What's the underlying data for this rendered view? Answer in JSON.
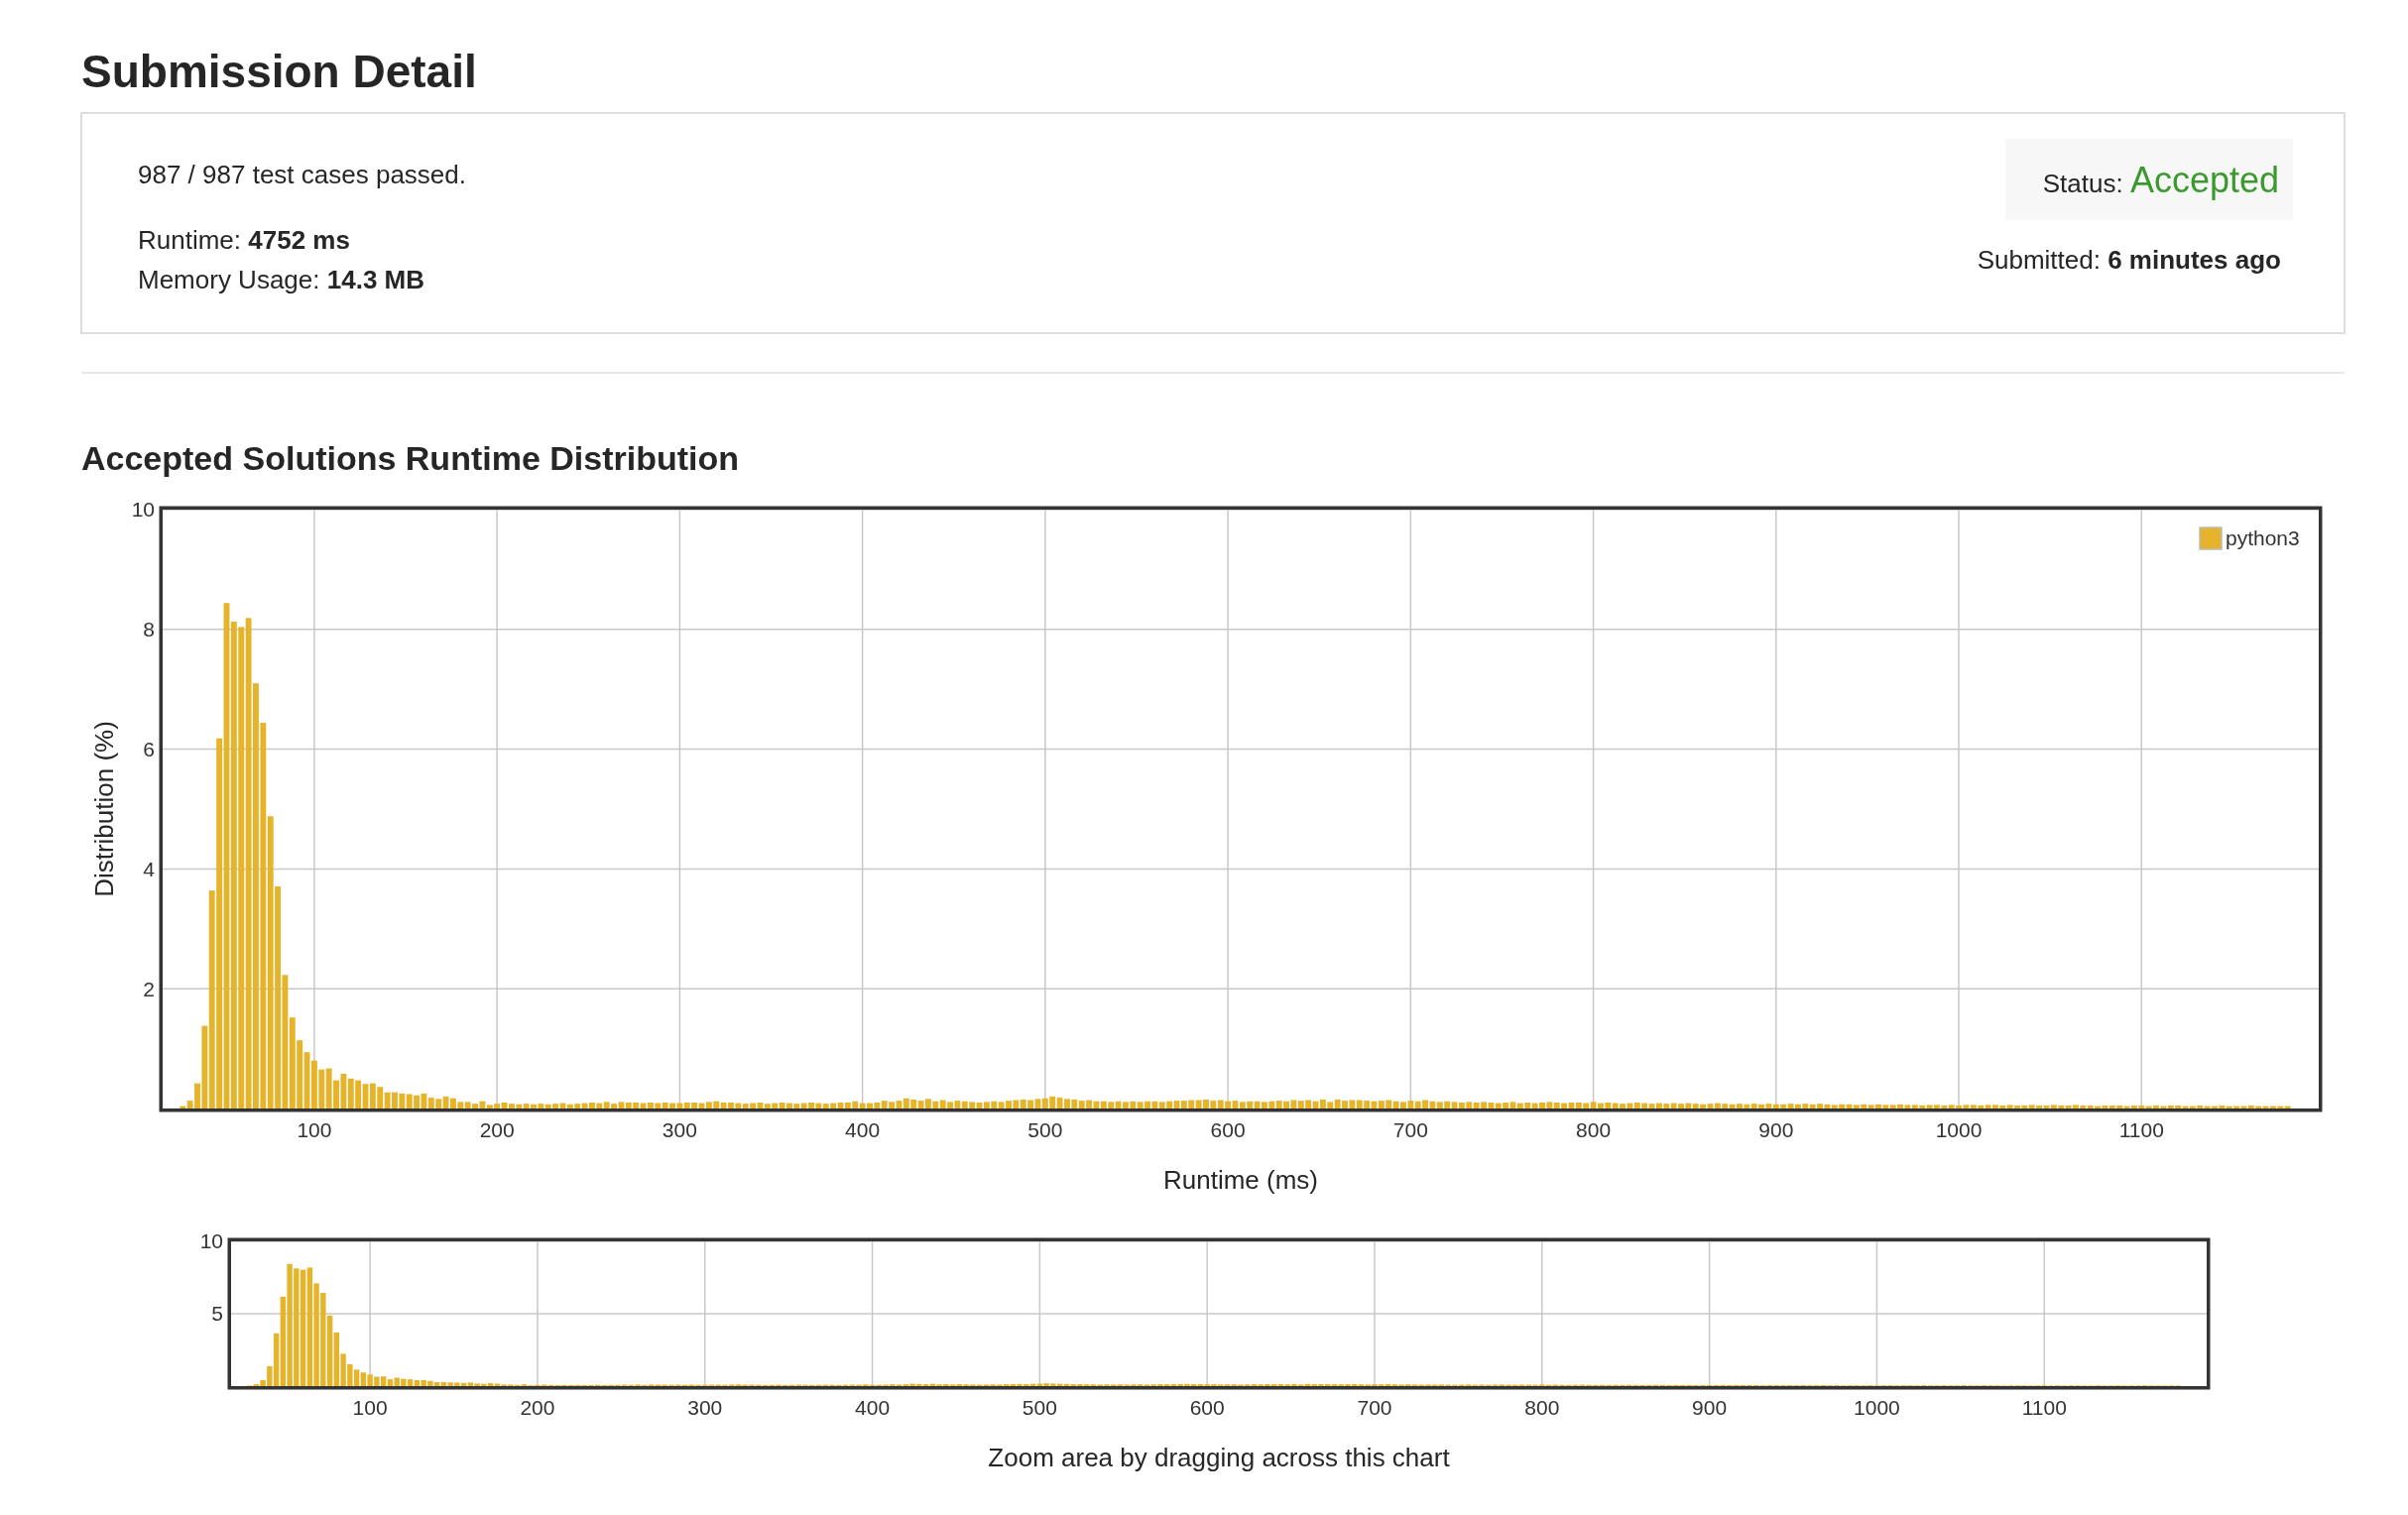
{
  "chart_data": [
    {
      "type": "other",
      "title": "Submission Detail",
      "annotations": [
        "987 / 987 test cases passed.",
        "Runtime: 4752 ms",
        "Memory Usage: 14.3 MB",
        "Status: Accepted",
        "Submitted: 6 minutes ago"
      ]
    },
    {
      "type": "bar",
      "title": "Accepted Solutions Runtime Distribution",
      "xlabel": "Runtime (ms)",
      "ylabel": "Distribution (%)",
      "xlim": [
        17,
        1197
      ],
      "ylim": [
        0,
        10
      ],
      "xticks": [
        100,
        200,
        300,
        400,
        500,
        600,
        700,
        800,
        900,
        1000,
        1100
      ],
      "yticks": [
        2,
        4,
        6,
        8,
        10
      ],
      "grid": true,
      "legend": "top right",
      "x": [
        28,
        32,
        36,
        40,
        44,
        48,
        52,
        56,
        60,
        64,
        68,
        72,
        76,
        80,
        84,
        88,
        92,
        96,
        100,
        104,
        108,
        112,
        116,
        120,
        124,
        128,
        132,
        136,
        140,
        144,
        148,
        152,
        156,
        160,
        164,
        168,
        172,
        176,
        180,
        184,
        188,
        192,
        196,
        200,
        204,
        208,
        212,
        216,
        220,
        224,
        228,
        232,
        236,
        240,
        244,
        248,
        252,
        256,
        260,
        264,
        268,
        272,
        276,
        280,
        284,
        288,
        292,
        296,
        300,
        304,
        308,
        312,
        316,
        320,
        324,
        328,
        332,
        336,
        340,
        344,
        348,
        352,
        356,
        360,
        364,
        368,
        372,
        376,
        380,
        384,
        388,
        392,
        396,
        400,
        404,
        408,
        412,
        416,
        420,
        424,
        428,
        432,
        436,
        440,
        444,
        448,
        452,
        456,
        460,
        464,
        468,
        472,
        476,
        480,
        484,
        488,
        492,
        496,
        500,
        504,
        508,
        512,
        516,
        520,
        524,
        528,
        532,
        536,
        540,
        544,
        548,
        552,
        556,
        560,
        564,
        568,
        572,
        576,
        580,
        584,
        588,
        592,
        596,
        600,
        604,
        608,
        612,
        616,
        620,
        624,
        628,
        632,
        636,
        640,
        644,
        648,
        652,
        656,
        660,
        664,
        668,
        672,
        676,
        680,
        684,
        688,
        692,
        696,
        700,
        704,
        708,
        712,
        716,
        720,
        724,
        728,
        732,
        736,
        740,
        744,
        748,
        752,
        756,
        760,
        764,
        768,
        772,
        776,
        780,
        784,
        788,
        792,
        796,
        800,
        804,
        808,
        812,
        816,
        820,
        824,
        828,
        832,
        836,
        840,
        844,
        848,
        852,
        856,
        860,
        864,
        868,
        872,
        876,
        880,
        884,
        888,
        892,
        896,
        900,
        904,
        908,
        912,
        916,
        920,
        924,
        928,
        932,
        936,
        940,
        944,
        948,
        952,
        956,
        960,
        964,
        968,
        972,
        976,
        980,
        984,
        988,
        992,
        996,
        1000,
        1004,
        1008,
        1012,
        1016,
        1020,
        1024,
        1028,
        1032,
        1036,
        1040,
        1044,
        1048,
        1052,
        1056,
        1060,
        1064,
        1068,
        1072,
        1076,
        1080,
        1084,
        1088,
        1092,
        1096,
        1100,
        1104,
        1108,
        1112,
        1116,
        1120,
        1124,
        1128,
        1132,
        1136,
        1140,
        1144,
        1148,
        1152,
        1156,
        1160,
        1164,
        1168,
        1172,
        1176,
        1180
      ],
      "series": [
        {
          "name": "python3",
          "color": "#e6b42a",
          "values": [
            0.04,
            0.13,
            0.42,
            1.38,
            3.64,
            6.18,
            8.44,
            8.13,
            8.04,
            8.19,
            7.1,
            6.44,
            4.88,
            3.71,
            2.23,
            1.52,
            1.14,
            0.94,
            0.8,
            0.65,
            0.67,
            0.47,
            0.58,
            0.5,
            0.47,
            0.41,
            0.42,
            0.36,
            0.27,
            0.27,
            0.25,
            0.24,
            0.22,
            0.25,
            0.18,
            0.16,
            0.2,
            0.17,
            0.11,
            0.11,
            0.08,
            0.12,
            0.06,
            0.08,
            0.1,
            0.08,
            0.07,
            0.08,
            0.07,
            0.08,
            0.07,
            0.08,
            0.09,
            0.07,
            0.08,
            0.09,
            0.1,
            0.09,
            0.11,
            0.08,
            0.11,
            0.1,
            0.1,
            0.09,
            0.1,
            0.09,
            0.1,
            0.09,
            0.09,
            0.1,
            0.1,
            0.09,
            0.11,
            0.12,
            0.1,
            0.1,
            0.09,
            0.08,
            0.09,
            0.1,
            0.08,
            0.09,
            0.1,
            0.09,
            0.08,
            0.09,
            0.1,
            0.09,
            0.08,
            0.09,
            0.1,
            0.1,
            0.12,
            0.09,
            0.09,
            0.1,
            0.13,
            0.11,
            0.13,
            0.17,
            0.15,
            0.13,
            0.16,
            0.12,
            0.14,
            0.11,
            0.13,
            0.12,
            0.11,
            0.1,
            0.11,
            0.12,
            0.11,
            0.13,
            0.14,
            0.15,
            0.14,
            0.16,
            0.17,
            0.2,
            0.18,
            0.16,
            0.15,
            0.13,
            0.14,
            0.12,
            0.12,
            0.11,
            0.12,
            0.11,
            0.12,
            0.11,
            0.12,
            0.12,
            0.11,
            0.12,
            0.13,
            0.13,
            0.14,
            0.14,
            0.15,
            0.13,
            0.14,
            0.12,
            0.13,
            0.11,
            0.12,
            0.12,
            0.11,
            0.12,
            0.13,
            0.12,
            0.14,
            0.13,
            0.14,
            0.12,
            0.15,
            0.11,
            0.15,
            0.13,
            0.14,
            0.14,
            0.13,
            0.12,
            0.13,
            0.14,
            0.12,
            0.11,
            0.13,
            0.12,
            0.14,
            0.12,
            0.11,
            0.12,
            0.11,
            0.1,
            0.11,
            0.1,
            0.11,
            0.1,
            0.09,
            0.1,
            0.11,
            0.09,
            0.1,
            0.09,
            0.1,
            0.11,
            0.1,
            0.09,
            0.1,
            0.1,
            0.09,
            0.11,
            0.09,
            0.1,
            0.09,
            0.08,
            0.09,
            0.1,
            0.09,
            0.08,
            0.09,
            0.08,
            0.09,
            0.08,
            0.09,
            0.08,
            0.07,
            0.08,
            0.09,
            0.08,
            0.07,
            0.08,
            0.07,
            0.08,
            0.07,
            0.08,
            0.07,
            0.07,
            0.08,
            0.07,
            0.08,
            0.07,
            0.08,
            0.07,
            0.06,
            0.07,
            0.07,
            0.06,
            0.07,
            0.06,
            0.07,
            0.06,
            0.06,
            0.07,
            0.06,
            0.06,
            0.05,
            0.06,
            0.06,
            0.05,
            0.06,
            0.05,
            0.06,
            0.06,
            0.05,
            0.06,
            0.06,
            0.05,
            0.06,
            0.05,
            0.05,
            0.06,
            0.05,
            0.05,
            0.06,
            0.05,
            0.05,
            0.06,
            0.05,
            0.05,
            0.04,
            0.05,
            0.05,
            0.05,
            0.04,
            0.05,
            0.05,
            0.04,
            0.05,
            0.04,
            0.05,
            0.05,
            0.04,
            0.04,
            0.05,
            0.04,
            0.04,
            0.05,
            0.04,
            0.04,
            0.04,
            0.05,
            0.04,
            0.04,
            0.04,
            0.04,
            0.04
          ]
        }
      ]
    },
    {
      "type": "bar",
      "xlabel": "Zoom area by dragging across this chart",
      "xlim": [
        17,
        1197
      ],
      "ylim": [
        0,
        10
      ],
      "xticks": [
        100,
        200,
        300,
        400,
        500,
        600,
        700,
        800,
        900,
        1000,
        1100
      ],
      "yticks": [
        5,
        10
      ],
      "grid": true,
      "x": [
        28,
        32,
        36,
        40,
        44,
        48,
        52,
        56,
        60,
        64,
        68,
        72,
        76,
        80,
        84,
        88,
        92,
        96,
        100,
        104,
        108,
        112,
        116,
        120,
        124,
        128,
        132,
        136,
        140,
        144,
        148,
        152,
        156,
        160,
        164,
        168,
        172,
        176,
        180,
        184,
        188,
        192,
        196,
        200,
        204,
        208,
        212,
        216,
        220,
        224,
        228,
        232,
        236,
        240,
        244,
        248,
        252,
        256,
        260,
        264,
        268,
        272,
        276,
        280,
        284,
        288,
        292,
        296,
        300,
        304,
        308,
        312,
        316,
        320,
        324,
        328,
        332,
        336,
        340,
        344,
        348,
        352,
        356,
        360,
        364,
        368,
        372,
        376,
        380,
        384,
        388,
        392,
        396,
        400,
        404,
        408,
        412,
        416,
        420,
        424,
        428,
        432,
        436,
        440,
        444,
        448,
        452,
        456,
        460,
        464,
        468,
        472,
        476,
        480,
        484,
        488,
        492,
        496,
        500,
        504,
        508,
        512,
        516,
        520,
        524,
        528,
        532,
        536,
        540,
        544,
        548,
        552,
        556,
        560,
        564,
        568,
        572,
        576,
        580,
        584,
        588,
        592,
        596,
        600,
        604,
        608,
        612,
        616,
        620,
        624,
        628,
        632,
        636,
        640,
        644,
        648,
        652,
        656,
        660,
        664,
        668,
        672,
        676,
        680,
        684,
        688,
        692,
        696,
        700,
        704,
        708,
        712,
        716,
        720,
        724,
        728,
        732,
        736,
        740,
        744,
        748,
        752,
        756,
        760,
        764,
        768,
        772,
        776,
        780,
        784,
        788,
        792,
        796,
        800,
        804,
        808,
        812,
        816,
        820,
        824,
        828,
        832,
        836,
        840,
        844,
        848,
        852,
        856,
        860,
        864,
        868,
        872,
        876,
        880,
        884,
        888,
        892,
        896,
        900,
        904,
        908,
        912,
        916,
        920,
        924,
        928,
        932,
        936,
        940,
        944,
        948,
        952,
        956,
        960,
        964,
        968,
        972,
        976,
        980,
        984,
        988,
        992,
        996,
        1000,
        1004,
        1008,
        1012,
        1016,
        1020,
        1024,
        1028,
        1032,
        1036,
        1040,
        1044,
        1048,
        1052,
        1056,
        1060,
        1064,
        1068,
        1072,
        1076,
        1080,
        1084,
        1088,
        1092,
        1096,
        1100,
        1104,
        1108,
        1112,
        1116,
        1120,
        1124,
        1128,
        1132,
        1136,
        1140,
        1144,
        1148,
        1152,
        1156,
        1160,
        1164,
        1168,
        1172,
        1176,
        1180
      ],
      "series": [
        {
          "color": "#e6b42a",
          "values": [
            0.04,
            0.13,
            0.42,
            1.38,
            3.64,
            6.18,
            8.44,
            8.13,
            8.04,
            8.19,
            7.1,
            6.44,
            4.88,
            3.71,
            2.23,
            1.52,
            1.14,
            0.94,
            0.8,
            0.65,
            0.67,
            0.47,
            0.58,
            0.5,
            0.47,
            0.41,
            0.42,
            0.36,
            0.27,
            0.27,
            0.25,
            0.24,
            0.22,
            0.25,
            0.18,
            0.16,
            0.2,
            0.17,
            0.11,
            0.11,
            0.08,
            0.12,
            0.06,
            0.08,
            0.1,
            0.08,
            0.07,
            0.08,
            0.07,
            0.08,
            0.07,
            0.08,
            0.09,
            0.07,
            0.08,
            0.09,
            0.1,
            0.09,
            0.11,
            0.08,
            0.11,
            0.1,
            0.1,
            0.09,
            0.1,
            0.09,
            0.1,
            0.09,
            0.09,
            0.1,
            0.1,
            0.09,
            0.11,
            0.12,
            0.1,
            0.1,
            0.09,
            0.08,
            0.09,
            0.1,
            0.08,
            0.09,
            0.1,
            0.09,
            0.08,
            0.09,
            0.1,
            0.09,
            0.08,
            0.09,
            0.1,
            0.1,
            0.12,
            0.09,
            0.09,
            0.1,
            0.13,
            0.11,
            0.13,
            0.17,
            0.15,
            0.13,
            0.16,
            0.12,
            0.14,
            0.11,
            0.13,
            0.12,
            0.11,
            0.1,
            0.11,
            0.12,
            0.11,
            0.13,
            0.14,
            0.15,
            0.14,
            0.16,
            0.17,
            0.2,
            0.18,
            0.16,
            0.15,
            0.13,
            0.14,
            0.12,
            0.12,
            0.11,
            0.12,
            0.11,
            0.12,
            0.11,
            0.12,
            0.12,
            0.11,
            0.12,
            0.13,
            0.13,
            0.14,
            0.14,
            0.15,
            0.13,
            0.14,
            0.12,
            0.13,
            0.11,
            0.12,
            0.12,
            0.11,
            0.12,
            0.13,
            0.12,
            0.14,
            0.13,
            0.14,
            0.12,
            0.15,
            0.11,
            0.15,
            0.13,
            0.14,
            0.14,
            0.13,
            0.12,
            0.13,
            0.14,
            0.12,
            0.11,
            0.13,
            0.12,
            0.14,
            0.12,
            0.11,
            0.12,
            0.11,
            0.1,
            0.11,
            0.1,
            0.11,
            0.1,
            0.09,
            0.1,
            0.11,
            0.09,
            0.1,
            0.09,
            0.1,
            0.11,
            0.1,
            0.09,
            0.1,
            0.1,
            0.09,
            0.11,
            0.09,
            0.1,
            0.09,
            0.08,
            0.09,
            0.1,
            0.09,
            0.08,
            0.09,
            0.08,
            0.09,
            0.08,
            0.09,
            0.08,
            0.07,
            0.08,
            0.09,
            0.08,
            0.07,
            0.08,
            0.07,
            0.08,
            0.07,
            0.08,
            0.07,
            0.07,
            0.08,
            0.07,
            0.08,
            0.07,
            0.08,
            0.07,
            0.06,
            0.07,
            0.07,
            0.06,
            0.07,
            0.06,
            0.07,
            0.06,
            0.06,
            0.07,
            0.06,
            0.06,
            0.05,
            0.06,
            0.06,
            0.05,
            0.06,
            0.05,
            0.06,
            0.06,
            0.05,
            0.06,
            0.06,
            0.05,
            0.06,
            0.05,
            0.05,
            0.06,
            0.05,
            0.05,
            0.06,
            0.05,
            0.05,
            0.06,
            0.05,
            0.05,
            0.04,
            0.05,
            0.05,
            0.05,
            0.04,
            0.05,
            0.05,
            0.04,
            0.05,
            0.04,
            0.05,
            0.05,
            0.04,
            0.04,
            0.05,
            0.04,
            0.04,
            0.05,
            0.04,
            0.04,
            0.04,
            0.05,
            0.04,
            0.04,
            0.04,
            0.04,
            0.04
          ]
        }
      ]
    }
  ]
}
